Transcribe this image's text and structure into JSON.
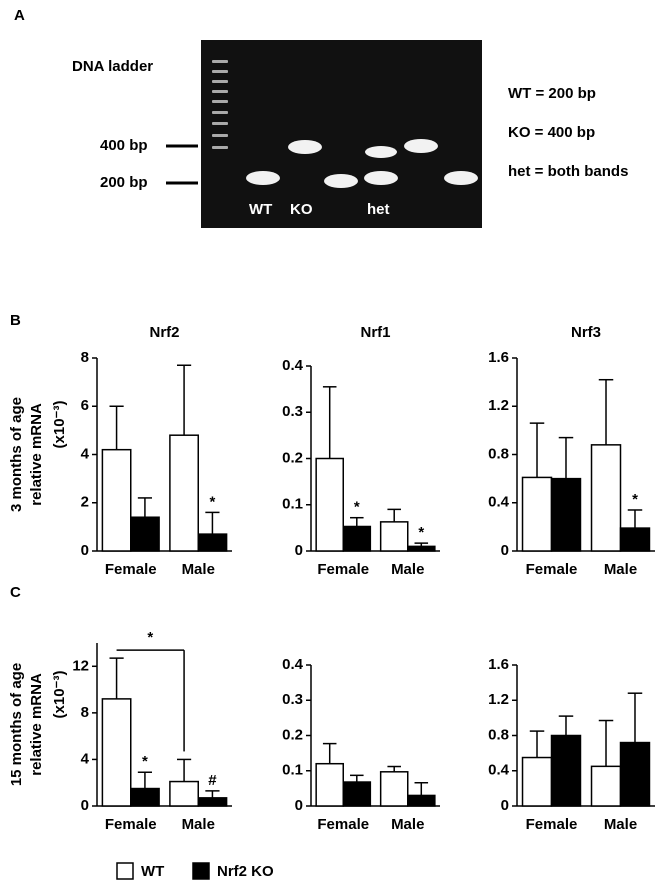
{
  "gel": {
    "panel": "A",
    "ladder_label": "DNA ladder",
    "marker_high": "400 bp",
    "marker_low": "200 bp",
    "lane_labels": [
      "WT",
      "KO",
      "het"
    ],
    "key": [
      "WT = 200 bp",
      "KO = 400 bp",
      "het = both bands"
    ]
  },
  "chart_data": [
    {
      "type": "bar",
      "panel": "B",
      "title": "Nrf2",
      "ylabel": [
        "3 months of age",
        "relative mRNA"
      ],
      "yunit": "(x10⁻³)",
      "categories": [
        "Female",
        "Male"
      ],
      "ylim": [
        0,
        8
      ],
      "yticks": [
        0,
        2,
        4,
        6,
        8
      ],
      "series": [
        {
          "name": "WT",
          "color": "#ffffff",
          "values": [
            4.2,
            4.8
          ],
          "errors": [
            1.8,
            2.9
          ],
          "significance": [
            null,
            null
          ]
        },
        {
          "name": "Nrf2 KO",
          "color": "#000000",
          "values": [
            1.4,
            0.7
          ],
          "errors": [
            0.8,
            0.9
          ],
          "significance": [
            null,
            "*"
          ]
        }
      ]
    },
    {
      "type": "bar",
      "title": "Nrf1",
      "categories": [
        "Female",
        "Male"
      ],
      "ylim": [
        0,
        0.4
      ],
      "yticks": [
        0,
        0.1,
        0.2,
        0.3,
        0.4
      ],
      "series": [
        {
          "name": "WT",
          "color": "#ffffff",
          "values": [
            0.2,
            0.063
          ],
          "errors": [
            0.155,
            0.027
          ],
          "significance": [
            null,
            null
          ]
        },
        {
          "name": "Nrf2 KO",
          "color": "#000000",
          "values": [
            0.053,
            0.01
          ],
          "errors": [
            0.019,
            0.007
          ],
          "significance": [
            "*",
            "*"
          ]
        }
      ]
    },
    {
      "type": "bar",
      "title": "Nrf3",
      "categories": [
        "Female",
        "Male"
      ],
      "ylim": [
        0,
        1.6
      ],
      "yticks": [
        0,
        0.4,
        0.8,
        1.2,
        1.6
      ],
      "series": [
        {
          "name": "WT",
          "color": "#ffffff",
          "values": [
            0.61,
            0.88
          ],
          "errors": [
            0.45,
            0.54
          ],
          "significance": [
            null,
            null
          ]
        },
        {
          "name": "Nrf2 KO",
          "color": "#000000",
          "values": [
            0.6,
            0.19
          ],
          "errors": [
            0.34,
            0.15
          ],
          "significance": [
            null,
            "*"
          ]
        }
      ]
    },
    {
      "type": "bar",
      "panel": "C",
      "ylabel": [
        "15 months of age",
        "relative mRNA"
      ],
      "yunit": "(x10⁻³)",
      "categories": [
        "Female",
        "Male"
      ],
      "ylim": [
        0,
        14
      ],
      "yticks": [
        0,
        4,
        8,
        12
      ],
      "bracket_label": "*",
      "series": [
        {
          "name": "WT",
          "color": "#ffffff",
          "values": [
            9.2,
            2.1
          ],
          "errors": [
            3.5,
            1.9
          ],
          "significance": [
            null,
            null
          ]
        },
        {
          "name": "Nrf2 KO",
          "color": "#000000",
          "values": [
            1.5,
            0.7
          ],
          "errors": [
            1.4,
            0.6
          ],
          "significance": [
            "*",
            "#"
          ]
        }
      ]
    },
    {
      "type": "bar",
      "categories": [
        "Female",
        "Male"
      ],
      "ylim": [
        0,
        0.4
      ],
      "yticks": [
        0,
        0.1,
        0.2,
        0.3,
        0.4
      ],
      "series": [
        {
          "name": "WT",
          "color": "#ffffff",
          "values": [
            0.12,
            0.097
          ],
          "errors": [
            0.057,
            0.015
          ],
          "significance": [
            null,
            null
          ]
        },
        {
          "name": "Nrf2 KO",
          "color": "#000000",
          "values": [
            0.068,
            0.03
          ],
          "errors": [
            0.019,
            0.036
          ],
          "significance": [
            null,
            null
          ]
        }
      ]
    },
    {
      "type": "bar",
      "categories": [
        "Female",
        "Male"
      ],
      "ylim": [
        0,
        1.6
      ],
      "yticks": [
        0,
        0.4,
        0.8,
        1.2,
        1.6
      ],
      "series": [
        {
          "name": "WT",
          "color": "#ffffff",
          "values": [
            0.55,
            0.45
          ],
          "errors": [
            0.3,
            0.52
          ],
          "significance": [
            null,
            null
          ]
        },
        {
          "name": "Nrf2 KO",
          "color": "#000000",
          "values": [
            0.8,
            0.72
          ],
          "errors": [
            0.22,
            0.56
          ],
          "significance": [
            null,
            null
          ]
        }
      ]
    }
  ]
}
